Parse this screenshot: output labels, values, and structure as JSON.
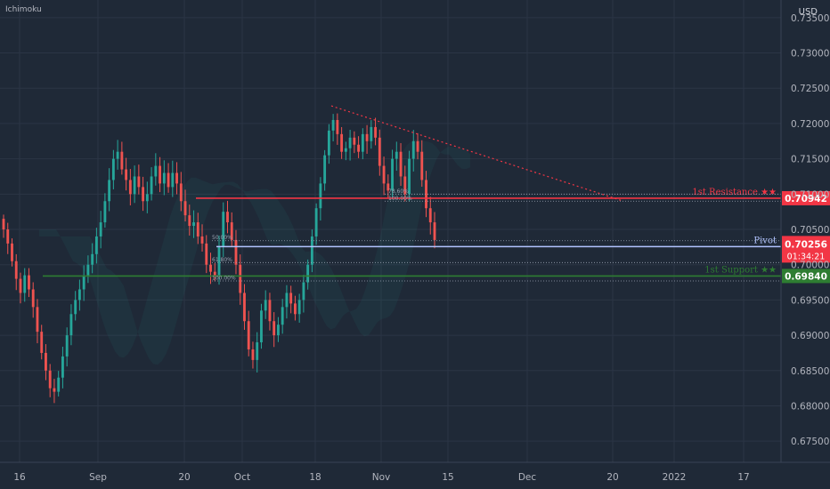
{
  "header": {
    "indicator": "Ichimoku",
    "currency": "USD"
  },
  "colors": {
    "background": "#1f2937",
    "grid": "#2b3545",
    "up": "#26a69a",
    "down": "#ef5350",
    "resistance": "#f23645",
    "pivot": "#b2c4ff",
    "support": "#2e7d32",
    "fib": "#9aa3b2",
    "axis_text": "#b2b5be"
  },
  "chart_data": {
    "type": "candlestick",
    "symbol_quote": "USD",
    "ylim": [
      0.672,
      0.7375
    ],
    "y_ticks": [
      "0.73500",
      "0.73000",
      "0.72500",
      "0.72000",
      "0.71500",
      "0.71000",
      "0.70500",
      "0.70000",
      "0.69500",
      "0.69000",
      "0.68500",
      "0.68000",
      "0.67500"
    ],
    "x_ticks": [
      "16",
      "Sep",
      "20",
      "Oct",
      "18",
      "Nov",
      "15",
      "Dec",
      "20",
      "2022",
      "17"
    ],
    "close_series": [
      0.705,
      0.703,
      0.7005,
      0.698,
      0.696,
      0.6985,
      0.6965,
      0.694,
      0.6905,
      0.6875,
      0.685,
      0.6825,
      0.682,
      0.684,
      0.687,
      0.69,
      0.693,
      0.695,
      0.6965,
      0.6985,
      0.7,
      0.7015,
      0.704,
      0.706,
      0.709,
      0.712,
      0.715,
      0.716,
      0.7135,
      0.712,
      0.71,
      0.7125,
      0.711,
      0.709,
      0.71,
      0.7125,
      0.714,
      0.7115,
      0.713,
      0.711,
      0.713,
      0.7115,
      0.709,
      0.707,
      0.7055,
      0.706,
      0.704,
      0.703,
      0.7,
      0.699,
      0.6985,
      0.7025,
      0.7075,
      0.706,
      0.7035,
      0.7,
      0.696,
      0.692,
      0.688,
      0.6865,
      0.689,
      0.6935,
      0.695,
      0.692,
      0.69,
      0.6915,
      0.694,
      0.696,
      0.6945,
      0.693,
      0.695,
      0.6975,
      0.7,
      0.704,
      0.708,
      0.7115,
      0.7155,
      0.719,
      0.7205,
      0.7185,
      0.716,
      0.7165,
      0.718,
      0.717,
      0.716,
      0.7185,
      0.7175,
      0.7195,
      0.718,
      0.714,
      0.7115,
      0.7105,
      0.715,
      0.716,
      0.7125,
      0.71,
      0.715,
      0.7175,
      0.716,
      0.712,
      0.708,
      0.706,
      0.7035
    ],
    "annotations": {
      "resistance": {
        "label": "1st Resistance ★★",
        "value": 0.70942,
        "price_tag": "0.70942"
      },
      "pivot": {
        "label": "Pivot",
        "value": 0.70256,
        "price_tag": "0.70256",
        "countdown": "01:34:21"
      },
      "support": {
        "label": "1st Support ★★",
        "value": 0.6984,
        "price_tag": "0.69840"
      },
      "fib_upper": [
        {
          "label": "78.60%",
          "value": 0.71
        },
        {
          "label": "100.00%",
          "value": 0.709
        }
      ],
      "fib_lower": [
        {
          "label": "50.00%",
          "value": 0.7034
        },
        {
          "label": "61.80%",
          "value": 0.7003
        },
        {
          "label": "100.00%",
          "value": 0.6977
        }
      ],
      "trendline": {
        "from": 0.7225,
        "to": 0.709
      }
    }
  }
}
